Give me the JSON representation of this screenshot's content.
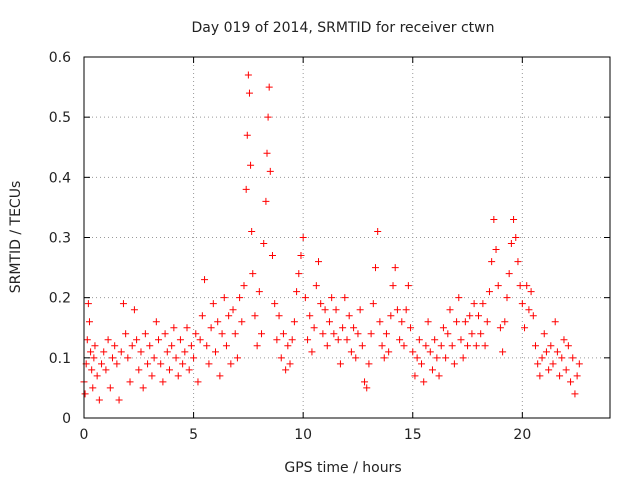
{
  "chart_data": {
    "type": "scatter",
    "title": "Day 019 of 2014, SRMTID for receiver ctwn",
    "xlabel": "GPS time / hours",
    "ylabel": "SRMTID / TECUs",
    "xlim": [
      0,
      24
    ],
    "ylim": [
      0,
      0.6
    ],
    "xticks": [
      0,
      5,
      10,
      15,
      20
    ],
    "xtick_labels": [
      "0",
      "5",
      "10",
      "15",
      "20"
    ],
    "yticks": [
      0,
      0.1,
      0.2,
      0.3,
      0.4,
      0.5,
      0.6
    ],
    "ytick_labels": [
      "0",
      "0.1",
      "0.2",
      "0.3",
      "0.4",
      "0.5",
      "0.6"
    ],
    "grid": true,
    "marker": "plus",
    "color": "#ff0000",
    "series": [
      {
        "name": "SRMTID",
        "points": [
          [
            0.0,
            0.06
          ],
          [
            0.05,
            0.04
          ],
          [
            0.1,
            0.09
          ],
          [
            0.15,
            0.13
          ],
          [
            0.2,
            0.19
          ],
          [
            0.25,
            0.16
          ],
          [
            0.3,
            0.11
          ],
          [
            0.35,
            0.08
          ],
          [
            0.4,
            0.05
          ],
          [
            0.45,
            0.1
          ],
          [
            0.5,
            0.12
          ],
          [
            0.6,
            0.07
          ],
          [
            0.7,
            0.03
          ],
          [
            0.8,
            0.09
          ],
          [
            0.9,
            0.11
          ],
          [
            1.0,
            0.08
          ],
          [
            1.1,
            0.13
          ],
          [
            1.2,
            0.05
          ],
          [
            1.3,
            0.1
          ],
          [
            1.4,
            0.12
          ],
          [
            1.5,
            0.09
          ],
          [
            1.6,
            0.03
          ],
          [
            1.7,
            0.11
          ],
          [
            1.8,
            0.19
          ],
          [
            1.9,
            0.14
          ],
          [
            2.0,
            0.1
          ],
          [
            2.1,
            0.06
          ],
          [
            2.2,
            0.12
          ],
          [
            2.3,
            0.18
          ],
          [
            2.4,
            0.13
          ],
          [
            2.5,
            0.08
          ],
          [
            2.6,
            0.11
          ],
          [
            2.7,
            0.05
          ],
          [
            2.8,
            0.14
          ],
          [
            2.9,
            0.09
          ],
          [
            3.0,
            0.12
          ],
          [
            3.1,
            0.07
          ],
          [
            3.2,
            0.1
          ],
          [
            3.3,
            0.16
          ],
          [
            3.4,
            0.13
          ],
          [
            3.5,
            0.09
          ],
          [
            3.6,
            0.06
          ],
          [
            3.7,
            0.14
          ],
          [
            3.8,
            0.11
          ],
          [
            3.9,
            0.08
          ],
          [
            4.0,
            0.12
          ],
          [
            4.1,
            0.15
          ],
          [
            4.2,
            0.1
          ],
          [
            4.3,
            0.07
          ],
          [
            4.4,
            0.13
          ],
          [
            4.5,
            0.09
          ],
          [
            4.6,
            0.11
          ],
          [
            4.7,
            0.15
          ],
          [
            4.8,
            0.08
          ],
          [
            4.9,
            0.12
          ],
          [
            5.0,
            0.1
          ],
          [
            5.1,
            0.14
          ],
          [
            5.2,
            0.06
          ],
          [
            5.3,
            0.13
          ],
          [
            5.4,
            0.17
          ],
          [
            5.5,
            0.23
          ],
          [
            5.6,
            0.12
          ],
          [
            5.7,
            0.09
          ],
          [
            5.8,
            0.15
          ],
          [
            5.9,
            0.19
          ],
          [
            6.0,
            0.11
          ],
          [
            6.1,
            0.16
          ],
          [
            6.2,
            0.07
          ],
          [
            6.3,
            0.14
          ],
          [
            6.4,
            0.2
          ],
          [
            6.5,
            0.12
          ],
          [
            6.6,
            0.17
          ],
          [
            6.7,
            0.09
          ],
          [
            6.8,
            0.18
          ],
          [
            6.9,
            0.14
          ],
          [
            7.0,
            0.1
          ],
          [
            7.1,
            0.2
          ],
          [
            7.2,
            0.16
          ],
          [
            7.3,
            0.22
          ],
          [
            7.4,
            0.38
          ],
          [
            7.45,
            0.47
          ],
          [
            7.5,
            0.57
          ],
          [
            7.55,
            0.54
          ],
          [
            7.6,
            0.42
          ],
          [
            7.65,
            0.31
          ],
          [
            7.7,
            0.24
          ],
          [
            7.8,
            0.17
          ],
          [
            7.9,
            0.12
          ],
          [
            8.0,
            0.21
          ],
          [
            8.1,
            0.14
          ],
          [
            8.2,
            0.29
          ],
          [
            8.3,
            0.36
          ],
          [
            8.35,
            0.44
          ],
          [
            8.4,
            0.5
          ],
          [
            8.45,
            0.55
          ],
          [
            8.5,
            0.41
          ],
          [
            8.6,
            0.27
          ],
          [
            8.7,
            0.19
          ],
          [
            8.8,
            0.13
          ],
          [
            8.9,
            0.17
          ],
          [
            9.0,
            0.1
          ],
          [
            9.1,
            0.14
          ],
          [
            9.2,
            0.08
          ],
          [
            9.3,
            0.12
          ],
          [
            9.4,
            0.09
          ],
          [
            9.5,
            0.13
          ],
          [
            9.6,
            0.16
          ],
          [
            9.7,
            0.21
          ],
          [
            9.8,
            0.24
          ],
          [
            9.9,
            0.27
          ],
          [
            10.0,
            0.3
          ],
          [
            10.1,
            0.2
          ],
          [
            10.2,
            0.13
          ],
          [
            10.3,
            0.17
          ],
          [
            10.4,
            0.11
          ],
          [
            10.5,
            0.15
          ],
          [
            10.6,
            0.22
          ],
          [
            10.7,
            0.26
          ],
          [
            10.8,
            0.19
          ],
          [
            10.9,
            0.14
          ],
          [
            11.0,
            0.18
          ],
          [
            11.1,
            0.12
          ],
          [
            11.2,
            0.16
          ],
          [
            11.3,
            0.2
          ],
          [
            11.4,
            0.14
          ],
          [
            11.5,
            0.18
          ],
          [
            11.6,
            0.13
          ],
          [
            11.7,
            0.09
          ],
          [
            11.8,
            0.15
          ],
          [
            11.9,
            0.2
          ],
          [
            12.0,
            0.13
          ],
          [
            12.1,
            0.17
          ],
          [
            12.2,
            0.11
          ],
          [
            12.3,
            0.15
          ],
          [
            12.4,
            0.1
          ],
          [
            12.5,
            0.14
          ],
          [
            12.6,
            0.18
          ],
          [
            12.7,
            0.12
          ],
          [
            12.8,
            0.06
          ],
          [
            12.9,
            0.05
          ],
          [
            13.0,
            0.09
          ],
          [
            13.1,
            0.14
          ],
          [
            13.2,
            0.19
          ],
          [
            13.3,
            0.25
          ],
          [
            13.4,
            0.31
          ],
          [
            13.5,
            0.16
          ],
          [
            13.6,
            0.12
          ],
          [
            13.7,
            0.1
          ],
          [
            13.8,
            0.14
          ],
          [
            13.9,
            0.11
          ],
          [
            14.0,
            0.17
          ],
          [
            14.1,
            0.22
          ],
          [
            14.2,
            0.25
          ],
          [
            14.3,
            0.18
          ],
          [
            14.4,
            0.13
          ],
          [
            14.5,
            0.16
          ],
          [
            14.6,
            0.12
          ],
          [
            14.7,
            0.18
          ],
          [
            14.8,
            0.22
          ],
          [
            14.9,
            0.15
          ],
          [
            15.0,
            0.11
          ],
          [
            15.1,
            0.07
          ],
          [
            15.2,
            0.1
          ],
          [
            15.3,
            0.13
          ],
          [
            15.4,
            0.09
          ],
          [
            15.5,
            0.06
          ],
          [
            15.6,
            0.12
          ],
          [
            15.7,
            0.16
          ],
          [
            15.8,
            0.11
          ],
          [
            15.9,
            0.08
          ],
          [
            16.0,
            0.13
          ],
          [
            16.1,
            0.1
          ],
          [
            16.2,
            0.07
          ],
          [
            16.3,
            0.12
          ],
          [
            16.4,
            0.15
          ],
          [
            16.5,
            0.1
          ],
          [
            16.6,
            0.14
          ],
          [
            16.7,
            0.18
          ],
          [
            16.8,
            0.12
          ],
          [
            16.9,
            0.09
          ],
          [
            17.0,
            0.16
          ],
          [
            17.1,
            0.2
          ],
          [
            17.2,
            0.13
          ],
          [
            17.3,
            0.1
          ],
          [
            17.4,
            0.16
          ],
          [
            17.5,
            0.12
          ],
          [
            17.6,
            0.17
          ],
          [
            17.7,
            0.14
          ],
          [
            17.8,
            0.19
          ],
          [
            17.9,
            0.12
          ],
          [
            18.0,
            0.17
          ],
          [
            18.1,
            0.14
          ],
          [
            18.2,
            0.19
          ],
          [
            18.3,
            0.12
          ],
          [
            18.4,
            0.16
          ],
          [
            18.5,
            0.21
          ],
          [
            18.6,
            0.26
          ],
          [
            18.7,
            0.33
          ],
          [
            18.8,
            0.28
          ],
          [
            18.9,
            0.22
          ],
          [
            19.0,
            0.15
          ],
          [
            19.1,
            0.11
          ],
          [
            19.2,
            0.16
          ],
          [
            19.3,
            0.2
          ],
          [
            19.4,
            0.24
          ],
          [
            19.5,
            0.29
          ],
          [
            19.6,
            0.33
          ],
          [
            19.7,
            0.3
          ],
          [
            19.8,
            0.26
          ],
          [
            19.9,
            0.22
          ],
          [
            20.0,
            0.19
          ],
          [
            20.1,
            0.15
          ],
          [
            20.2,
            0.22
          ],
          [
            20.3,
            0.18
          ],
          [
            20.4,
            0.21
          ],
          [
            20.5,
            0.17
          ],
          [
            20.6,
            0.12
          ],
          [
            20.7,
            0.09
          ],
          [
            20.8,
            0.07
          ],
          [
            20.9,
            0.1
          ],
          [
            21.0,
            0.14
          ],
          [
            21.1,
            0.11
          ],
          [
            21.2,
            0.08
          ],
          [
            21.3,
            0.12
          ],
          [
            21.4,
            0.09
          ],
          [
            21.5,
            0.16
          ],
          [
            21.6,
            0.11
          ],
          [
            21.7,
            0.07
          ],
          [
            21.8,
            0.1
          ],
          [
            21.9,
            0.13
          ],
          [
            22.0,
            0.08
          ],
          [
            22.1,
            0.12
          ],
          [
            22.2,
            0.06
          ],
          [
            22.3,
            0.1
          ],
          [
            22.4,
            0.04
          ],
          [
            22.5,
            0.07
          ],
          [
            22.6,
            0.09
          ]
        ]
      }
    ]
  }
}
